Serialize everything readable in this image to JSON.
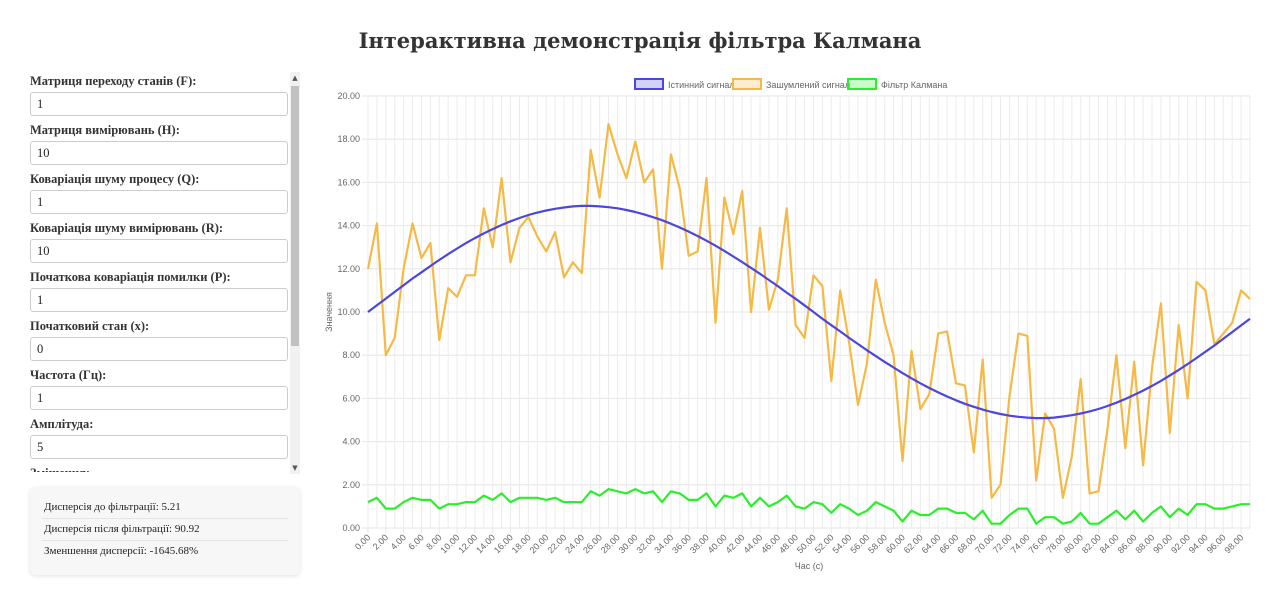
{
  "page": {
    "title": "Інтерактивна демонстрація фільтра Калмана"
  },
  "params": [
    {
      "label": "Матриця переходу станів (F):",
      "value": "1"
    },
    {
      "label": "Матриця вимірювань (H):",
      "value": "10"
    },
    {
      "label": "Коваріація шуму процесу (Q):",
      "value": "1"
    },
    {
      "label": "Коваріація шуму вимірювань (R):",
      "value": "10"
    },
    {
      "label": "Початкова коваріація помилки (P):",
      "value": "1"
    },
    {
      "label": "Початковий стан (x):",
      "value": "0"
    },
    {
      "label": "Частота (Гц):",
      "value": "1"
    },
    {
      "label": "Амплітуда:",
      "value": "5"
    },
    {
      "label": "Зміщення:",
      "value": ""
    }
  ],
  "stats": {
    "before": "Дисперсія до фільтрації: 5.21",
    "after": "Дисперсія після фільтрації: 90.92",
    "reduction": "Зменшення дисперсії: -1645.68%"
  },
  "colors": {
    "true": "#4b46e0",
    "noisy": "#f5b945",
    "kalman": "#2aef2a"
  },
  "chart_data": {
    "type": "line",
    "xlabel": "Час (с)",
    "ylabel": "Значення",
    "ylim": [
      0,
      20
    ],
    "yticks": [
      "0.00",
      "2.00",
      "4.00",
      "6.00",
      "8.00",
      "10.00",
      "12.00",
      "14.00",
      "16.00",
      "18.00",
      "20.00"
    ],
    "x": [
      0,
      1,
      2,
      3,
      4,
      5,
      6,
      7,
      8,
      9,
      10,
      11,
      12,
      13,
      14,
      15,
      16,
      17,
      18,
      19,
      20,
      21,
      22,
      23,
      24,
      25,
      26,
      27,
      28,
      29,
      30,
      31,
      32,
      33,
      34,
      35,
      36,
      37,
      38,
      39,
      40,
      41,
      42,
      43,
      44,
      45,
      46,
      47,
      48,
      49,
      50,
      51,
      52,
      53,
      54,
      55,
      56,
      57,
      58,
      59,
      60,
      61,
      62,
      63,
      64,
      65,
      66,
      67,
      68,
      69,
      70,
      71,
      72,
      73,
      74,
      75,
      76,
      77,
      78,
      79,
      80,
      81,
      82,
      83,
      84,
      85,
      86,
      87,
      88,
      89,
      90,
      91,
      92,
      93,
      94,
      95,
      96,
      97,
      98,
      99
    ],
    "xticks": [
      "0.00",
      "2.00",
      "4.00",
      "6.00",
      "8.00",
      "10.00",
      "12.00",
      "14.00",
      "16.00",
      "18.00",
      "20.00",
      "22.00",
      "24.00",
      "26.00",
      "28.00",
      "30.00",
      "32.00",
      "34.00",
      "36.00",
      "38.00",
      "40.00",
      "42.00",
      "44.00",
      "46.00",
      "48.00",
      "50.00",
      "52.00",
      "54.00",
      "56.00",
      "58.00",
      "60.00",
      "62.00",
      "64.00",
      "66.00",
      "68.00",
      "70.00",
      "72.00",
      "74.00",
      "76.00",
      "78.00",
      "80.00",
      "82.00",
      "84.00",
      "86.00",
      "88.00",
      "90.00",
      "92.00",
      "94.00",
      "96.00",
      "98.00"
    ],
    "legend_position": "top",
    "grid": true,
    "series": [
      {
        "name": "Істинний сигнал",
        "values": [
          10.0,
          10.31,
          10.62,
          10.93,
          11.24,
          11.55,
          11.84,
          12.13,
          12.41,
          12.68,
          12.94,
          13.19,
          13.42,
          13.64,
          13.84,
          14.03,
          14.2,
          14.35,
          14.49,
          14.6,
          14.7,
          14.78,
          14.84,
          14.89,
          14.91,
          14.91,
          14.89,
          14.85,
          14.8,
          14.72,
          14.63,
          14.52,
          14.39,
          14.25,
          14.09,
          13.91,
          13.72,
          13.52,
          13.3,
          13.07,
          12.83,
          12.57,
          12.31,
          12.04,
          11.77,
          11.48,
          11.2,
          10.9,
          10.61,
          10.31,
          10.0,
          9.69,
          9.39,
          9.1,
          8.8,
          8.52,
          8.23,
          7.96,
          7.69,
          7.43,
          7.17,
          6.93,
          6.7,
          6.48,
          6.28,
          6.09,
          5.91,
          5.75,
          5.61,
          5.48,
          5.37,
          5.28,
          5.2,
          5.15,
          5.11,
          5.09,
          5.09,
          5.11,
          5.16,
          5.22,
          5.3,
          5.4,
          5.51,
          5.65,
          5.8,
          5.97,
          6.16,
          6.36,
          6.58,
          6.81,
          7.06,
          7.32,
          7.59,
          7.87,
          8.16,
          8.45,
          8.76,
          9.07,
          9.38,
          9.69
        ]
      },
      {
        "name": "Зашумлений сигнал",
        "values": [
          12.0,
          14.1,
          8.0,
          8.8,
          12.0,
          14.1,
          12.5,
          13.2,
          8.7,
          11.1,
          10.7,
          11.7,
          11.7,
          14.8,
          13.0,
          16.2,
          12.3,
          13.9,
          14.4,
          13.5,
          12.8,
          13.7,
          11.6,
          12.3,
          11.8,
          17.5,
          15.3,
          18.7,
          17.3,
          16.2,
          17.9,
          16.0,
          16.6,
          12.0,
          17.3,
          15.7,
          12.6,
          12.8,
          16.2,
          9.5,
          15.3,
          13.6,
          15.6,
          10.0,
          13.9,
          10.1,
          11.5,
          14.8,
          9.4,
          8.8,
          11.7,
          11.2,
          6.8,
          11.0,
          8.6,
          5.7,
          7.6,
          11.5,
          9.5,
          8.0,
          3.1,
          8.2,
          5.5,
          6.2,
          9.0,
          9.1,
          6.7,
          6.6,
          3.5,
          7.8,
          1.4,
          2.0,
          6.1,
          9.0,
          8.9,
          2.2,
          5.3,
          4.6,
          1.4,
          3.3,
          6.9,
          1.6,
          1.7,
          4.6,
          8.0,
          3.7,
          7.7,
          2.9,
          7.4,
          10.4,
          4.4,
          9.4,
          6.0,
          11.4,
          11.0,
          8.5,
          9.0,
          9.5,
          11.0,
          10.6
        ]
      },
      {
        "name": "Фільтр Калмана",
        "values": [
          1.2,
          1.4,
          0.9,
          0.9,
          1.2,
          1.4,
          1.3,
          1.3,
          0.9,
          1.1,
          1.1,
          1.2,
          1.2,
          1.5,
          1.3,
          1.6,
          1.2,
          1.4,
          1.4,
          1.4,
          1.3,
          1.4,
          1.2,
          1.2,
          1.2,
          1.7,
          1.5,
          1.8,
          1.7,
          1.6,
          1.8,
          1.6,
          1.7,
          1.2,
          1.7,
          1.6,
          1.3,
          1.3,
          1.6,
          1.0,
          1.5,
          1.4,
          1.6,
          1.0,
          1.4,
          1.0,
          1.2,
          1.5,
          1.0,
          0.9,
          1.2,
          1.1,
          0.7,
          1.1,
          0.9,
          0.6,
          0.8,
          1.2,
          1.0,
          0.8,
          0.3,
          0.8,
          0.6,
          0.6,
          0.9,
          0.9,
          0.7,
          0.7,
          0.4,
          0.8,
          0.2,
          0.2,
          0.6,
          0.9,
          0.9,
          0.2,
          0.5,
          0.5,
          0.2,
          0.3,
          0.7,
          0.2,
          0.2,
          0.5,
          0.8,
          0.4,
          0.8,
          0.3,
          0.7,
          1.0,
          0.5,
          0.9,
          0.6,
          1.1,
          1.1,
          0.9,
          0.9,
          1.0,
          1.1,
          1.1
        ]
      }
    ]
  }
}
